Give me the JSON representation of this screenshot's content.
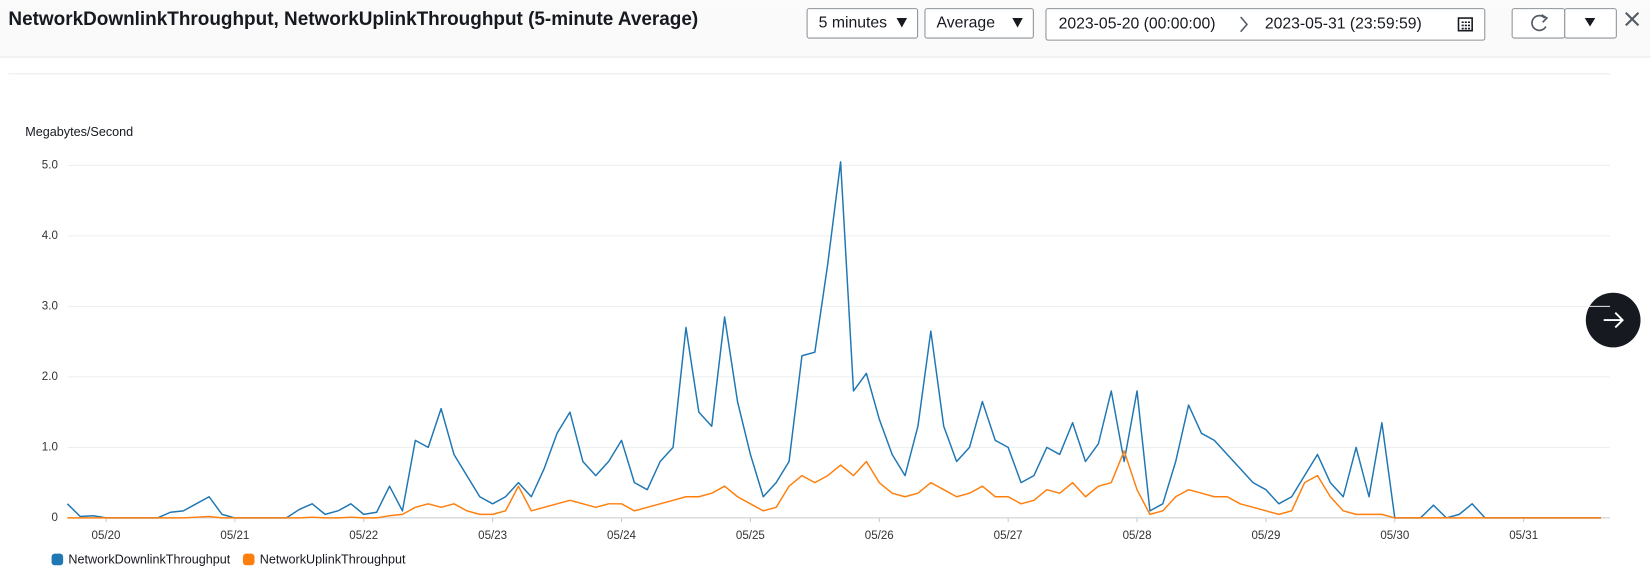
{
  "toolbar": {
    "period": "5 minutes",
    "statistic": "Average",
    "start": "2023-05-20 (00:00:00)",
    "end": "2023-05-31 (23:59:59)"
  },
  "chart_data": {
    "type": "line",
    "title": "NetworkDownlinkThroughput, NetworkUplinkThroughput (5-minute Average)",
    "ylabel": "Megabytes/Second",
    "x": [
      19.7,
      19.8,
      19.9,
      20.0,
      20.1,
      20.2,
      20.3,
      20.4,
      20.5,
      20.6,
      20.7,
      20.8,
      20.9,
      21.0,
      21.1,
      21.2,
      21.3,
      21.4,
      21.5,
      21.6,
      21.7,
      21.8,
      21.9,
      22.0,
      22.1,
      22.2,
      22.3,
      22.4,
      22.5,
      22.6,
      22.7,
      22.8,
      22.9,
      23.0,
      23.1,
      23.2,
      23.3,
      23.4,
      23.5,
      23.6,
      23.7,
      23.8,
      23.9,
      24.0,
      24.1,
      24.2,
      24.3,
      24.4,
      24.5,
      24.6,
      24.7,
      24.8,
      24.9,
      25.0,
      25.1,
      25.2,
      25.3,
      25.4,
      25.5,
      25.6,
      25.7,
      25.8,
      25.9,
      26.0,
      26.1,
      26.2,
      26.3,
      26.4,
      26.5,
      26.6,
      26.7,
      26.8,
      26.9,
      27.0,
      27.1,
      27.2,
      27.3,
      27.4,
      27.5,
      27.6,
      27.7,
      27.8,
      27.9,
      28.0,
      28.1,
      28.2,
      28.3,
      28.4,
      28.5,
      28.6,
      28.7,
      28.8,
      28.9,
      29.0,
      29.1,
      29.2,
      29.3,
      29.4,
      29.5,
      29.6,
      29.7,
      29.8,
      29.9,
      30.0,
      30.1,
      30.2,
      30.3,
      30.4,
      30.5,
      30.6,
      30.7,
      30.8,
      30.9,
      31.0,
      31.1,
      31.2,
      31.3,
      31.4,
      31.5,
      31.6
    ],
    "series": [
      {
        "name": "NetworkDownlinkThroughput",
        "color": "#1f77b4",
        "values": [
          0.2,
          0.02,
          0.03,
          0,
          0,
          0,
          0,
          0,
          0.08,
          0.1,
          0.2,
          0.3,
          0.05,
          0,
          0,
          0,
          0,
          0,
          0.12,
          0.2,
          0.05,
          0.1,
          0.2,
          0.05,
          0.08,
          0.45,
          0.1,
          1.1,
          1.0,
          1.55,
          0.9,
          0.6,
          0.3,
          0.2,
          0.3,
          0.5,
          0.3,
          0.7,
          1.2,
          1.5,
          0.8,
          0.6,
          0.8,
          1.1,
          0.5,
          0.4,
          0.8,
          1.0,
          2.7,
          1.5,
          1.3,
          2.85,
          1.65,
          0.9,
          0.3,
          0.5,
          0.8,
          2.3,
          2.35,
          3.6,
          5.05,
          1.8,
          2.05,
          1.4,
          0.9,
          0.6,
          1.3,
          2.65,
          1.3,
          0.8,
          1.0,
          1.65,
          1.1,
          1.0,
          0.5,
          0.6,
          1.0,
          0.9,
          1.35,
          0.8,
          1.05,
          1.8,
          0.8,
          1.8,
          0.1,
          0.2,
          0.8,
          1.6,
          1.2,
          1.1,
          0.9,
          0.7,
          0.5,
          0.4,
          0.2,
          0.3,
          0.6,
          0.9,
          0.5,
          0.3,
          1.0,
          0.3,
          1.35,
          0,
          0,
          0,
          0.18,
          0,
          0.05,
          0.2,
          0,
          0,
          0,
          0,
          0,
          0,
          0,
          0,
          0,
          0
        ]
      },
      {
        "name": "NetworkUplinkThroughput",
        "color": "#ff7f0e",
        "values": [
          0,
          0,
          0,
          0,
          0,
          0,
          0,
          0,
          0,
          0,
          0.01,
          0.02,
          0,
          0,
          0,
          0,
          0,
          0,
          0,
          0.01,
          0,
          0,
          0.01,
          0,
          0,
          0.03,
          0.05,
          0.15,
          0.2,
          0.15,
          0.2,
          0.1,
          0.05,
          0.05,
          0.1,
          0.45,
          0.1,
          0.15,
          0.2,
          0.25,
          0.2,
          0.15,
          0.2,
          0.2,
          0.1,
          0.15,
          0.2,
          0.25,
          0.3,
          0.3,
          0.35,
          0.45,
          0.3,
          0.2,
          0.1,
          0.15,
          0.45,
          0.6,
          0.5,
          0.6,
          0.75,
          0.6,
          0.8,
          0.5,
          0.35,
          0.3,
          0.35,
          0.5,
          0.4,
          0.3,
          0.35,
          0.45,
          0.3,
          0.3,
          0.2,
          0.25,
          0.4,
          0.35,
          0.5,
          0.3,
          0.45,
          0.5,
          0.95,
          0.4,
          0.05,
          0.1,
          0.3,
          0.4,
          0.35,
          0.3,
          0.3,
          0.2,
          0.15,
          0.1,
          0.05,
          0.1,
          0.5,
          0.6,
          0.3,
          0.1,
          0.05,
          0.05,
          0.05,
          0,
          0,
          0,
          0,
          0,
          0,
          0,
          0,
          0,
          0,
          0,
          0,
          0,
          0,
          0,
          0,
          0
        ]
      }
    ],
    "xlim": [
      19.7,
      31.67
    ],
    "xticks": [
      {
        "value": 20,
        "label": "05/20"
      },
      {
        "value": 21,
        "label": "05/21"
      },
      {
        "value": 22,
        "label": "05/22"
      },
      {
        "value": 23,
        "label": "05/23"
      },
      {
        "value": 24,
        "label": "05/24"
      },
      {
        "value": 25,
        "label": "05/25"
      },
      {
        "value": 26,
        "label": "05/26"
      },
      {
        "value": 27,
        "label": "05/27"
      },
      {
        "value": 28,
        "label": "05/28"
      },
      {
        "value": 29,
        "label": "05/29"
      },
      {
        "value": 30,
        "label": "05/30"
      },
      {
        "value": 31,
        "label": "05/31"
      }
    ],
    "ylim": [
      0,
      5
    ],
    "yticks": [
      0,
      {
        "value": 1,
        "label": "1.0"
      },
      {
        "value": 2,
        "label": "2.0"
      },
      {
        "value": 3,
        "label": "3.0"
      },
      {
        "value": 4,
        "label": "4.0"
      },
      {
        "value": 5,
        "label": "5.0"
      }
    ],
    "grid": true
  }
}
